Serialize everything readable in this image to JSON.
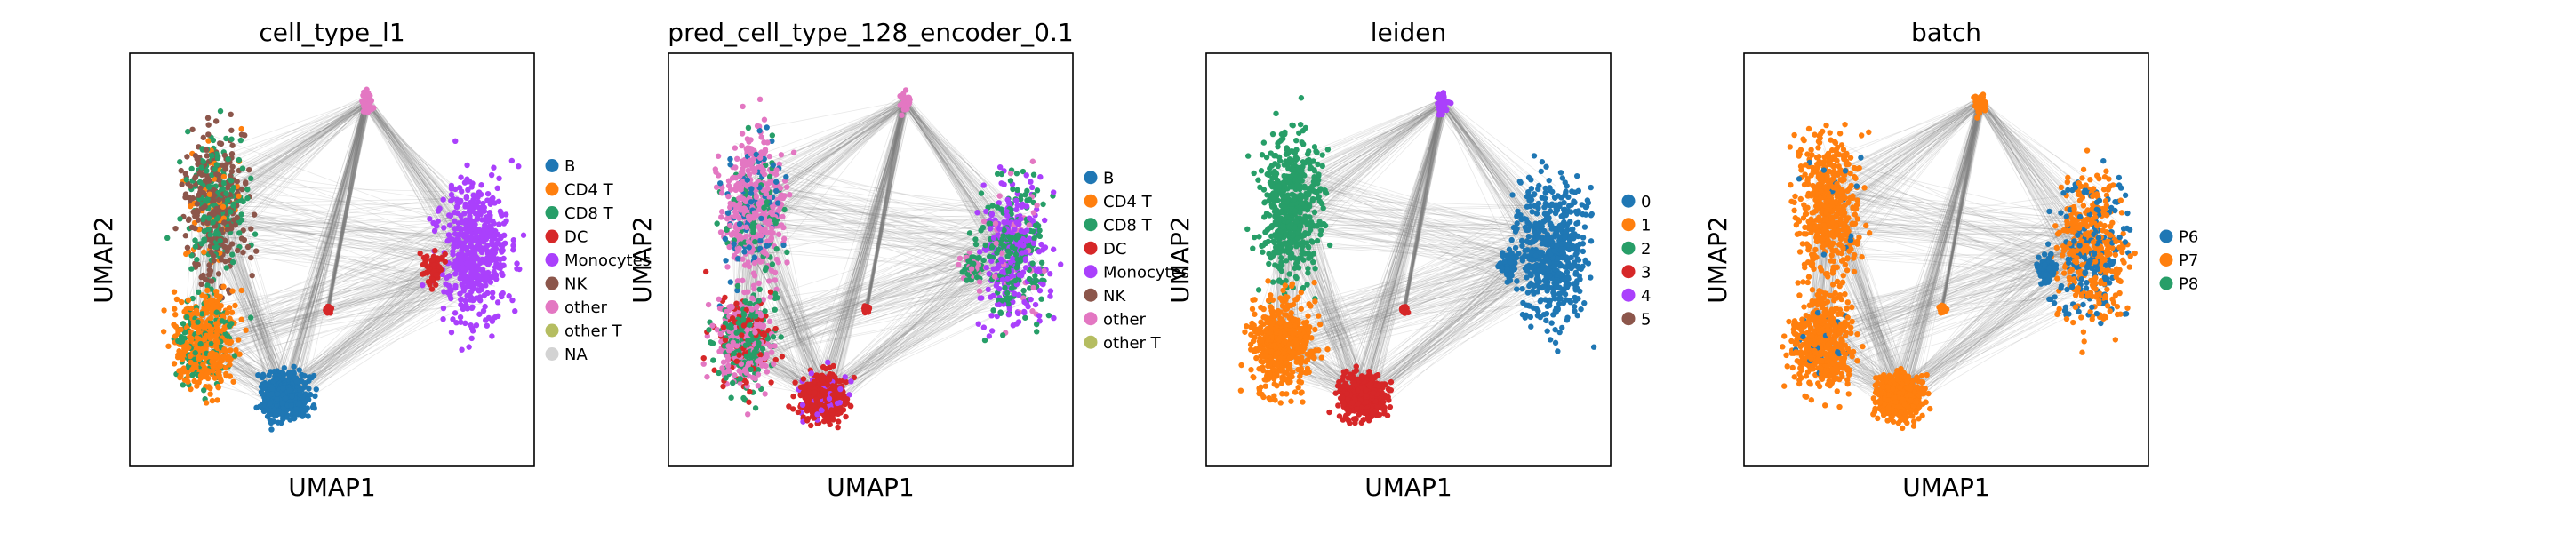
{
  "chart_data": [
    {
      "type": "scatter",
      "title": "cell_type_l1",
      "xlabel": "UMAP1",
      "ylabel": "UMAP2",
      "grid": false,
      "legend_position": "right",
      "categories": [
        "B",
        "CD4 T",
        "CD8 T",
        "DC",
        "Monocytes",
        "NK",
        "other",
        "other T",
        "NA"
      ],
      "colors": [
        "#1f77b4",
        "#ff7f0e",
        "#279e68",
        "#d62728",
        "#aa40fc",
        "#8c564b",
        "#e377c2",
        "#b5bd61",
        "#d3d3d3"
      ]
    },
    {
      "type": "scatter",
      "title": "pred_cell_type_128_encoder_0.1",
      "xlabel": "UMAP1",
      "ylabel": "UMAP2",
      "grid": false,
      "legend_position": "right",
      "categories": [
        "B",
        "CD4 T",
        "CD8 T",
        "DC",
        "Monocytes",
        "NK",
        "other",
        "other T"
      ],
      "colors": [
        "#1f77b4",
        "#ff7f0e",
        "#279e68",
        "#d62728",
        "#aa40fc",
        "#8c564b",
        "#e377c2",
        "#b5bd61"
      ]
    },
    {
      "type": "scatter",
      "title": "leiden",
      "xlabel": "UMAP1",
      "ylabel": "UMAP2",
      "grid": false,
      "legend_position": "right",
      "categories": [
        "0",
        "1",
        "2",
        "3",
        "4",
        "5"
      ],
      "colors": [
        "#1f77b4",
        "#ff7f0e",
        "#279e68",
        "#d62728",
        "#aa40fc",
        "#8c564b"
      ]
    },
    {
      "type": "scatter",
      "title": "batch",
      "xlabel": "UMAP1",
      "ylabel": "UMAP2",
      "grid": false,
      "legend_position": "right",
      "categories": [
        "P6",
        "P7",
        "P8"
      ],
      "colors": [
        "#1f77b4",
        "#ff7f0e",
        "#279e68"
      ]
    }
  ]
}
